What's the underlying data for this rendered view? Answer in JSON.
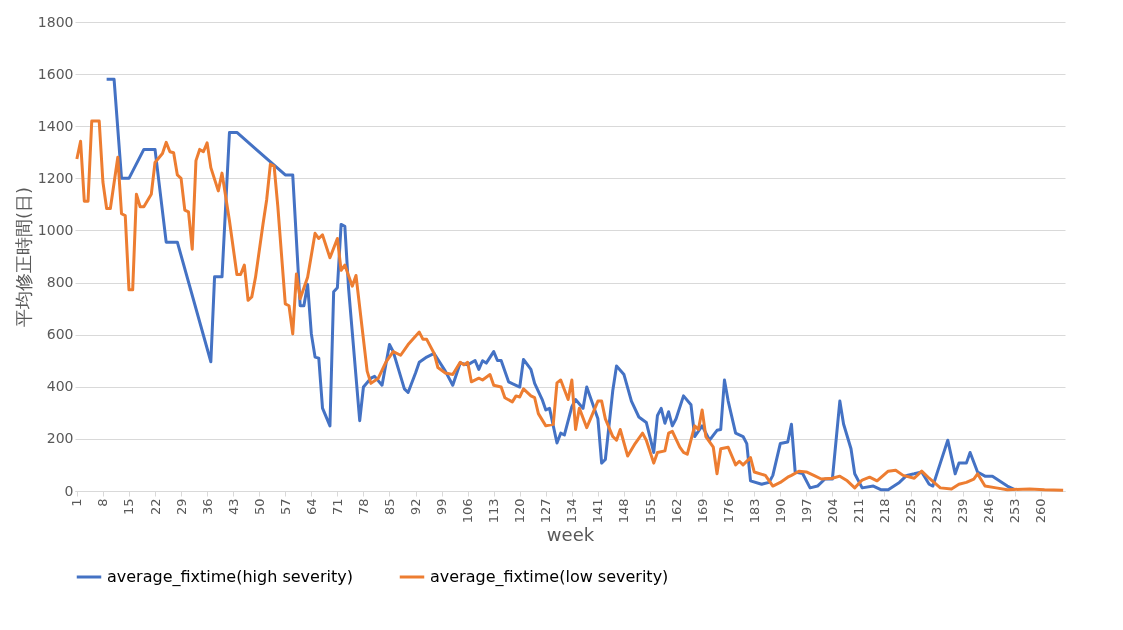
{
  "chart_data": {
    "type": "line",
    "xlabel": "week",
    "ylabel": "平均修正時間(日)",
    "xlim": [
      0.5,
      266.5
    ],
    "xticks": [
      1,
      8,
      15,
      22,
      29,
      36,
      43,
      50,
      57,
      64,
      71,
      78,
      85,
      92,
      99,
      106,
      113,
      120,
      127,
      134,
      141,
      148,
      155,
      162,
      169,
      176,
      183,
      190,
      197,
      204,
      211,
      218,
      225,
      232,
      239,
      246,
      253,
      260
    ],
    "ylim": [
      0,
      1800
    ],
    "yticks": [
      0,
      200,
      400,
      600,
      800,
      1000,
      1200,
      1400,
      1600,
      1800
    ],
    "grid": "y",
    "legend": "bottom",
    "marker": "none",
    "line_style": "solid",
    "series": [
      {
        "name": "average_fixtime(high severity)",
        "color": "#4472c4",
        "x": [
          9,
          11,
          13,
          15,
          19,
          22,
          25,
          28,
          37,
          38,
          40,
          42,
          44,
          57,
          59,
          61,
          62,
          63,
          64,
          65,
          66,
          67,
          69,
          70,
          71,
          72,
          73,
          74,
          77,
          78,
          80,
          81,
          83,
          85,
          86,
          89,
          90,
          92,
          93,
          95,
          97,
          100,
          102,
          104,
          106,
          108,
          109,
          110,
          111,
          113,
          114,
          115,
          117,
          118,
          120,
          121,
          123,
          124,
          126,
          127,
          128,
          130,
          131,
          132,
          134,
          135,
          137,
          138,
          140,
          141,
          142,
          143,
          145,
          146,
          148,
          150,
          152,
          154,
          156,
          157,
          158,
          159,
          160,
          161,
          162,
          164,
          166,
          167,
          169,
          171,
          173,
          174,
          175,
          176,
          178,
          180,
          181,
          182,
          185,
          187,
          188,
          190,
          192,
          193,
          194,
          196,
          198,
          200,
          202,
          204,
          206,
          207,
          209,
          210,
          212,
          215,
          217,
          219,
          222,
          224,
          226,
          228,
          230,
          231,
          233,
          235,
          237,
          238,
          240,
          241,
          243,
          245,
          247,
          251,
          253
        ],
        "values": [
          1580,
          1580,
          1200,
          1200,
          1311,
          1311,
          955,
          955,
          496,
          822,
          822,
          1376,
          1376,
          1213,
          1213,
          711,
          711,
          793,
          603,
          514,
          510,
          318,
          250,
          765,
          780,
          1023,
          1016,
          779,
          270,
          399,
          433,
          440,
          406,
          562,
          535,
          392,
          378,
          453,
          494,
          514,
          528,
          460,
          406,
          491,
          484,
          501,
          467,
          500,
          491,
          535,
          501,
          501,
          419,
          412,
          399,
          505,
          467,
          413,
          352,
          311,
          317,
          184,
          222,
          215,
          324,
          351,
          317,
          399,
          318,
          277,
          107,
          121,
          386,
          480,
          447,
          345,
          284,
          263,
          148,
          290,
          317,
          260,
          304,
          250,
          277,
          365,
          331,
          209,
          250,
          195,
          233,
          236,
          426,
          345,
          222,
          209,
          182,
          39,
          26,
          33,
          60,
          182,
          188,
          256,
          73,
          67,
          12,
          19,
          46,
          46,
          345,
          257,
          162,
          66,
          12,
          19,
          5,
          5,
          33,
          60,
          66,
          73,
          26,
          19,
          107,
          195,
          66,
          107,
          107,
          148,
          73,
          57,
          57,
          19,
          5
        ]
      },
      {
        "name": "average_fixtime(low severity)",
        "color": "#ed7d31",
        "x": [
          1,
          2,
          3,
          4,
          5,
          7,
          8,
          9,
          10,
          12,
          13,
          14,
          15,
          16,
          17,
          18,
          19,
          21,
          22,
          24,
          25,
          26,
          27,
          28,
          29,
          30,
          31,
          32,
          33,
          34,
          35,
          36,
          37,
          39,
          40,
          42,
          44,
          45,
          46,
          47,
          48,
          49,
          51,
          52,
          53,
          54,
          55,
          57,
          58,
          59,
          60,
          61,
          63,
          65,
          66,
          67,
          69,
          71,
          72,
          73,
          75,
          76,
          79,
          80,
          82,
          84,
          86,
          88,
          90,
          93,
          94,
          95,
          97,
          98,
          100,
          102,
          104,
          105,
          106,
          107,
          109,
          110,
          112,
          113,
          115,
          116,
          118,
          119,
          120,
          121,
          123,
          124,
          125,
          127,
          129,
          130,
          131,
          133,
          134,
          135,
          136,
          138,
          139,
          141,
          142,
          143,
          145,
          146,
          147,
          149,
          151,
          153,
          154,
          156,
          157,
          159,
          160,
          161,
          163,
          164,
          165,
          167,
          168,
          169,
          170,
          172,
          173,
          174,
          176,
          178,
          179,
          180,
          182,
          183,
          186,
          188,
          190,
          192,
          193,
          195,
          197,
          199,
          201,
          204,
          206,
          208,
          210,
          212,
          214,
          216,
          219,
          221,
          223,
          226,
          228,
          230,
          233,
          236,
          238,
          240,
          242,
          243,
          245,
          248,
          251,
          257,
          261,
          266
        ],
        "values": [
          1274,
          1342,
          1112,
          1112,
          1420,
          1420,
          1186,
          1084,
          1084,
          1281,
          1064,
          1057,
          772,
          772,
          1139,
          1091,
          1091,
          1139,
          1261,
          1295,
          1338,
          1302,
          1298,
          1213,
          1200,
          1078,
          1071,
          928,
          1268,
          1311,
          1302,
          1336,
          1241,
          1152,
          1220,
          1037,
          831,
          831,
          867,
          732,
          745,
          820,
          1023,
          1118,
          1254,
          1247,
          1091,
          718,
          711,
          603,
          833,
          738,
          820,
          989,
          969,
          983,
          895,
          969,
          847,
          867,
          786,
          827,
          460,
          413,
          433,
          494,
          535,
          521,
          562,
          610,
          582,
          582,
          528,
          474,
          453,
          447,
          494,
          484,
          494,
          419,
          433,
          426,
          447,
          406,
          399,
          358,
          342,
          365,
          361,
          392,
          365,
          358,
          297,
          250,
          256,
          415,
          426,
          351,
          426,
          236,
          318,
          243,
          277,
          345,
          345,
          277,
          209,
          195,
          236,
          134,
          182,
          222,
          195,
          107,
          148,
          154,
          222,
          229,
          168,
          148,
          141,
          250,
          236,
          311,
          209,
          168,
          66,
          162,
          168,
          100,
          114,
          100,
          128,
          73,
          60,
          19,
          33,
          53,
          60,
          76,
          73,
          60,
          46,
          49,
          57,
          39,
          12,
          42,
          53,
          39,
          76,
          80,
          60,
          49,
          76,
          49,
          12,
          8,
          26,
          33,
          46,
          66,
          19,
          12,
          5,
          8,
          5,
          3
        ]
      }
    ]
  }
}
